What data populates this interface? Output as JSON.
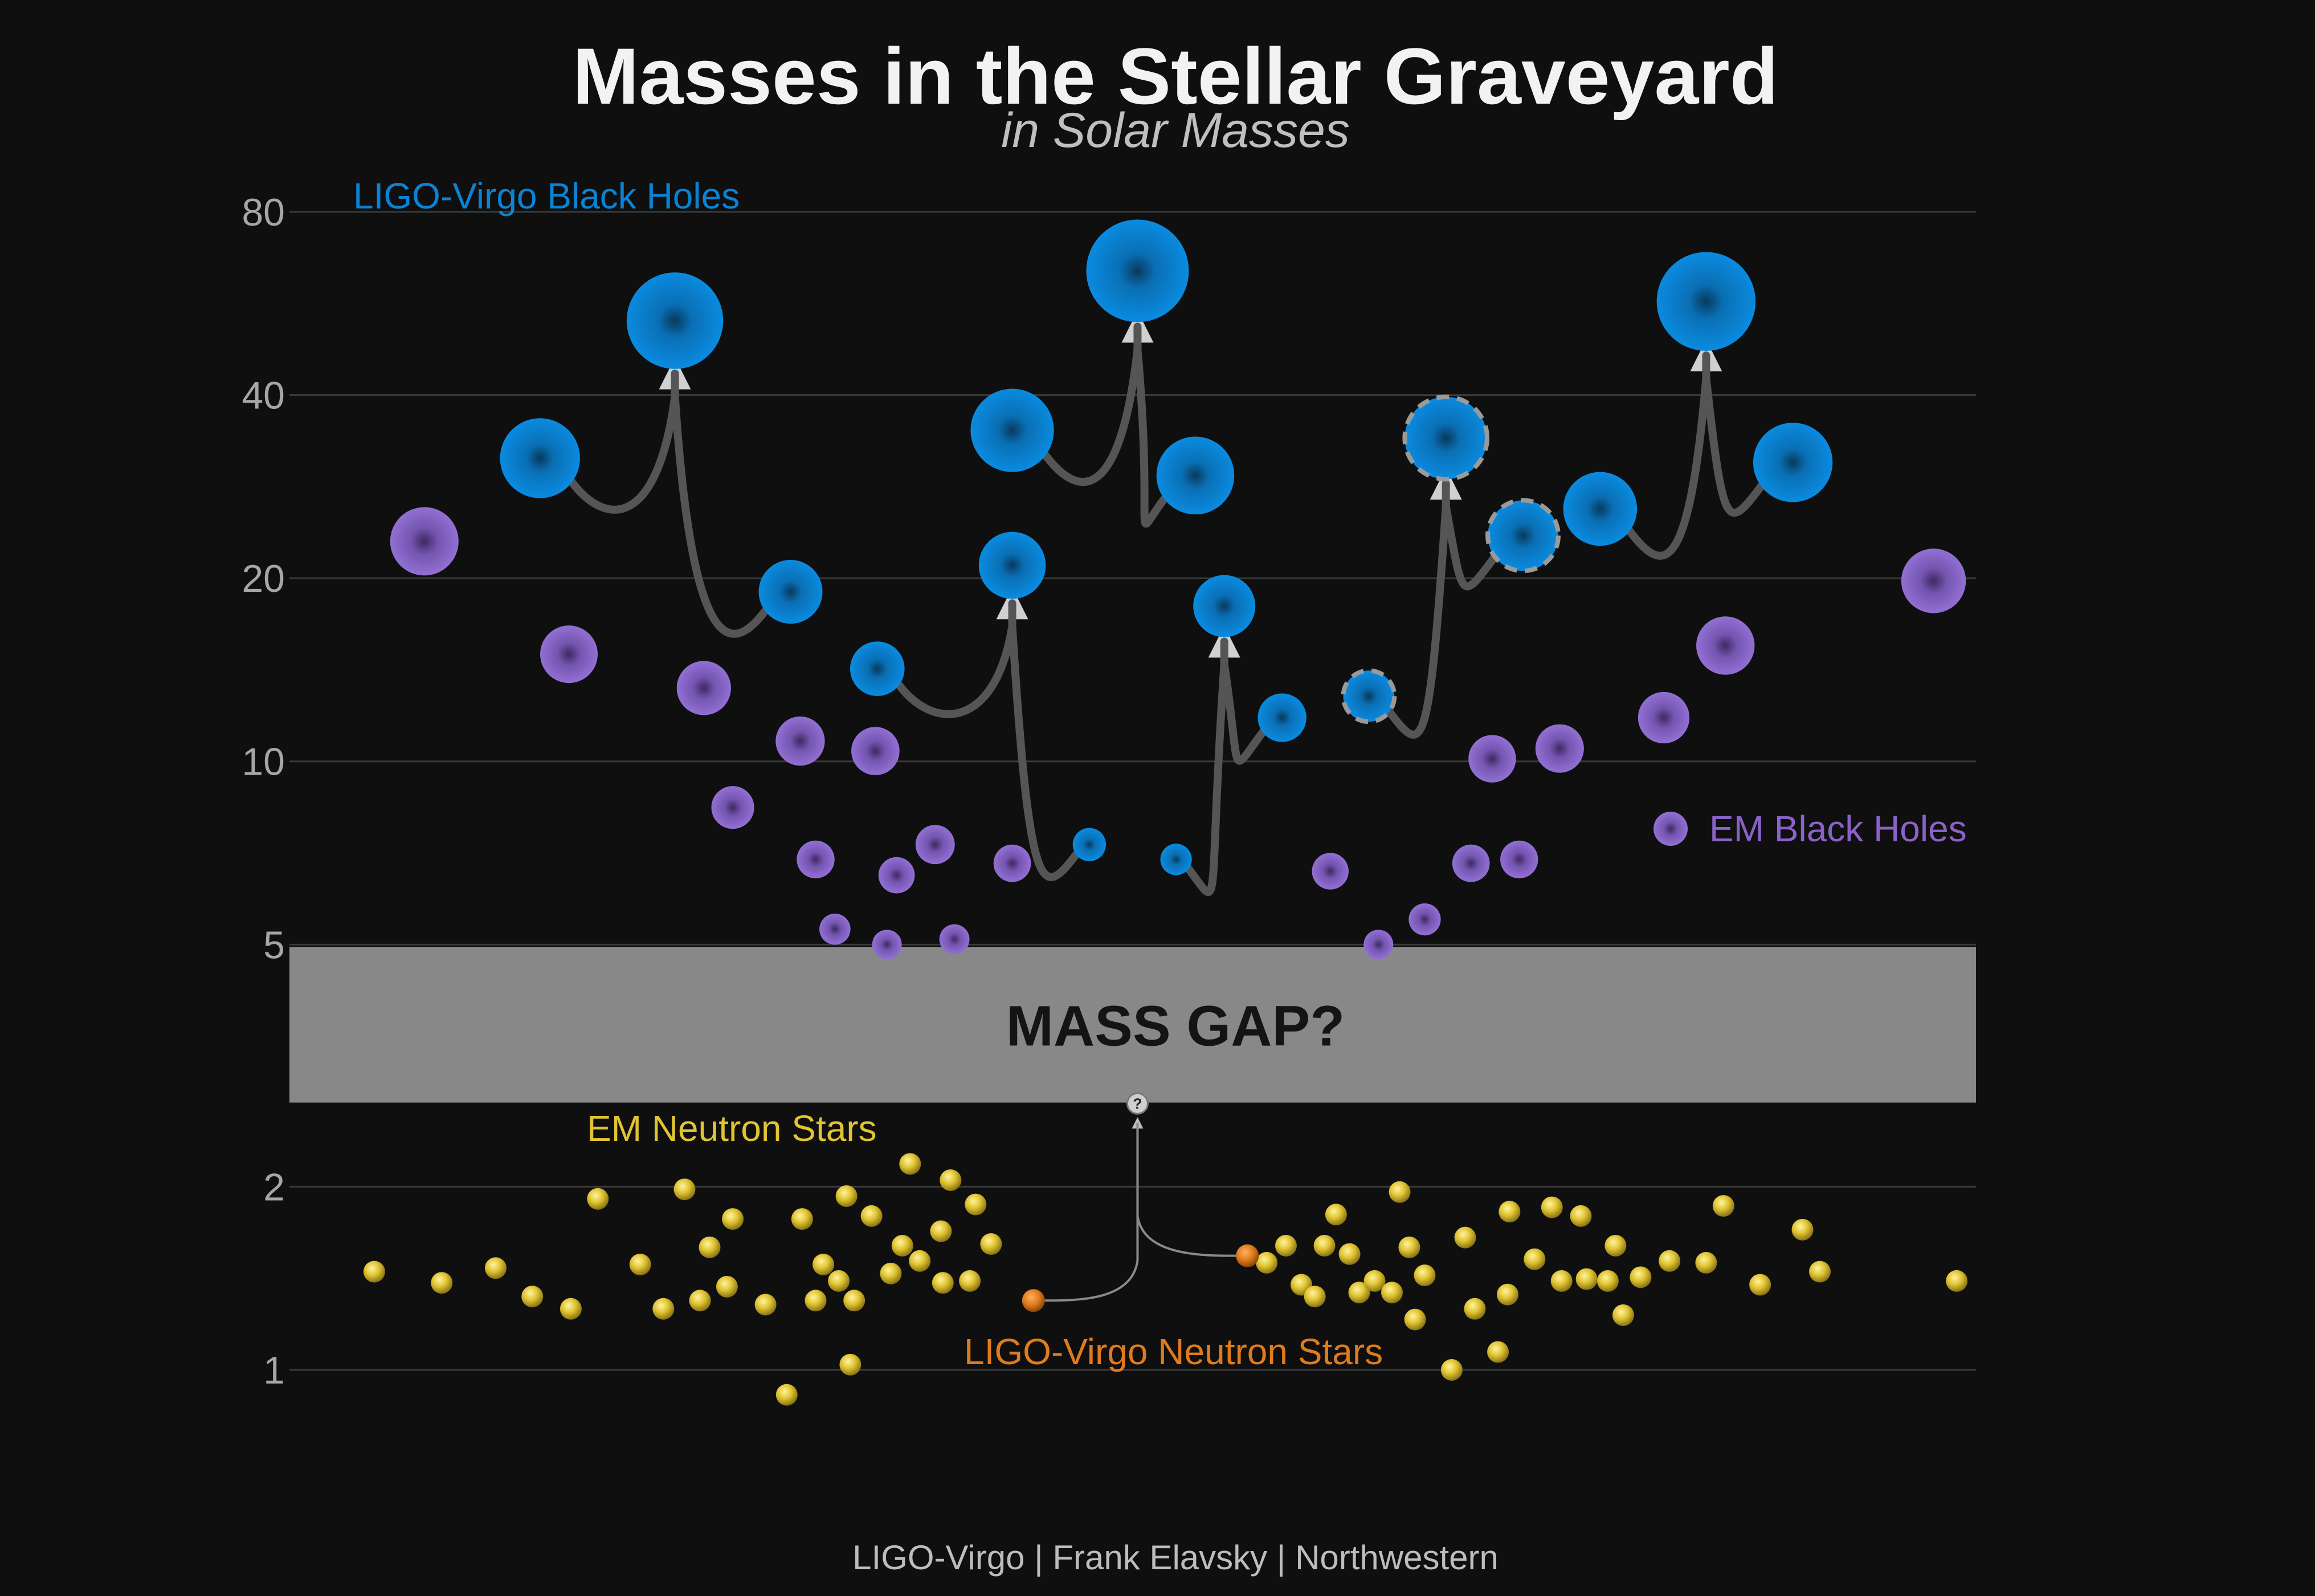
{
  "colors": {
    "background": "#0f0f0f",
    "ligo_bh": "#0a83d4",
    "em_bh": "#8a62c9",
    "em_ns": "#e0c432",
    "ligo_ns": "#df7b1e",
    "mass_gap": "#888888",
    "arrow": "#555555",
    "arrow_head": "#d0d0d0"
  },
  "chart_data": {
    "type": "scatter",
    "title": "Masses in the Stellar Graveyard",
    "subtitle": "in Solar Masses",
    "y_scale": "log",
    "ylim": [
      0.6,
      100
    ],
    "y_ticks": [
      1,
      2,
      5,
      10,
      20,
      40,
      80
    ],
    "y_tick_labels": [
      "1",
      "2",
      "5",
      "10",
      "20",
      "40",
      "80"
    ],
    "x_axis_visible": false,
    "grid": true,
    "mass_gap": {
      "label": "MASS GAP?",
      "range": [
        2.75,
        4.95
      ]
    },
    "series": [
      {
        "name": "LIGO-Virgo Black Holes",
        "color": "#0a83d4",
        "points": [
          {
            "x": 13,
            "y": 31.5
          },
          {
            "x": 20,
            "y": 53
          },
          {
            "x": 26,
            "y": 19
          },
          {
            "x": 30.5,
            "y": 14.2
          },
          {
            "x": 37.5,
            "y": 21
          },
          {
            "x": 37.5,
            "y": 35
          },
          {
            "x": 41.5,
            "y": 7.3
          },
          {
            "x": 44,
            "y": 64
          },
          {
            "x": 46,
            "y": 6.9
          },
          {
            "x": 47,
            "y": 29.5
          },
          {
            "x": 48.5,
            "y": 18
          },
          {
            "x": 51.5,
            "y": 11.8
          },
          {
            "x": 56,
            "y": 12.8,
            "dashed": true
          },
          {
            "x": 60,
            "y": 34,
            "dashed": true
          },
          {
            "x": 64,
            "y": 23.5,
            "dashed": true
          },
          {
            "x": 68,
            "y": 26
          },
          {
            "x": 73.5,
            "y": 57
          },
          {
            "x": 78,
            "y": 31
          }
        ],
        "mergers": [
          {
            "from": [
              0,
              2
            ],
            "to": 1
          },
          {
            "from": [
              3,
              6
            ],
            "to": 4
          },
          {
            "from": [
              5,
              9
            ],
            "to": 7
          },
          {
            "from": [
              8,
              11
            ],
            "to": 10
          },
          {
            "from": [
              12,
              14
            ],
            "to": 13
          },
          {
            "from": [
              15,
              17
            ],
            "to": 16
          }
        ]
      },
      {
        "name": "EM Black Holes",
        "color": "#8a62c9",
        "points": [
          {
            "x": 7,
            "y": 23
          },
          {
            "x": 14.5,
            "y": 15
          },
          {
            "x": 21.5,
            "y": 13.2
          },
          {
            "x": 23,
            "y": 8.4
          },
          {
            "x": 26.5,
            "y": 10.8
          },
          {
            "x": 27.3,
            "y": 6.9
          },
          {
            "x": 28.3,
            "y": 5.3
          },
          {
            "x": 30.4,
            "y": 10.4
          },
          {
            "x": 31,
            "y": 5
          },
          {
            "x": 31.5,
            "y": 6.5
          },
          {
            "x": 33.5,
            "y": 7.3
          },
          {
            "x": 34.5,
            "y": 5.1
          },
          {
            "x": 37.5,
            "y": 6.8
          },
          {
            "x": 54,
            "y": 6.6
          },
          {
            "x": 56.5,
            "y": 5.0
          },
          {
            "x": 58.9,
            "y": 5.5
          },
          {
            "x": 61.3,
            "y": 6.8
          },
          {
            "x": 62.4,
            "y": 10.1
          },
          {
            "x": 63.8,
            "y": 6.9
          },
          {
            "x": 65.9,
            "y": 10.5
          },
          {
            "x": 71.3,
            "y": 11.8
          },
          {
            "x": 74.5,
            "y": 15.5
          },
          {
            "x": 85.3,
            "y": 19.8
          }
        ]
      },
      {
        "name": "EM Neutron Stars",
        "color": "#e0c432",
        "points": [
          {
            "x": 4.4,
            "y": 1.45
          },
          {
            "x": 7.9,
            "y": 1.39
          },
          {
            "x": 10.7,
            "y": 1.47
          },
          {
            "x": 12.6,
            "y": 1.32
          },
          {
            "x": 14.6,
            "y": 1.26
          },
          {
            "x": 16,
            "y": 1.91
          },
          {
            "x": 18.2,
            "y": 1.49
          },
          {
            "x": 19.4,
            "y": 1.26
          },
          {
            "x": 20.5,
            "y": 1.98
          },
          {
            "x": 21.3,
            "y": 1.3
          },
          {
            "x": 21.8,
            "y": 1.59
          },
          {
            "x": 22.7,
            "y": 1.37
          },
          {
            "x": 23,
            "y": 1.77
          },
          {
            "x": 24.7,
            "y": 1.28
          },
          {
            "x": 25.8,
            "y": 0.91
          },
          {
            "x": 26.6,
            "y": 1.77
          },
          {
            "x": 27.3,
            "y": 1.3
          },
          {
            "x": 27.7,
            "y": 1.49
          },
          {
            "x": 28.5,
            "y": 1.4
          },
          {
            "x": 28.9,
            "y": 1.93
          },
          {
            "x": 29.1,
            "y": 1.02
          },
          {
            "x": 29.3,
            "y": 1.3
          },
          {
            "x": 30.2,
            "y": 1.79
          },
          {
            "x": 31.2,
            "y": 1.44
          },
          {
            "x": 31.8,
            "y": 1.6
          },
          {
            "x": 32.2,
            "y": 2.18
          },
          {
            "x": 32.7,
            "y": 1.51
          },
          {
            "x": 33.8,
            "y": 1.69
          },
          {
            "x": 33.9,
            "y": 1.39
          },
          {
            "x": 34.3,
            "y": 2.05
          },
          {
            "x": 35.3,
            "y": 1.4
          },
          {
            "x": 35.6,
            "y": 1.87
          },
          {
            "x": 36.4,
            "y": 1.61
          },
          {
            "x": 50.7,
            "y": 1.5
          },
          {
            "x": 51.7,
            "y": 1.6
          },
          {
            "x": 52.5,
            "y": 1.38
          },
          {
            "x": 53.2,
            "y": 1.32
          },
          {
            "x": 53.7,
            "y": 1.6
          },
          {
            "x": 54.3,
            "y": 1.8
          },
          {
            "x": 55,
            "y": 1.55
          },
          {
            "x": 55.5,
            "y": 1.34
          },
          {
            "x": 56.3,
            "y": 1.4
          },
          {
            "x": 57.2,
            "y": 1.34
          },
          {
            "x": 57.6,
            "y": 1.96
          },
          {
            "x": 58.1,
            "y": 1.59
          },
          {
            "x": 58.4,
            "y": 1.21
          },
          {
            "x": 58.9,
            "y": 1.43
          },
          {
            "x": 60.3,
            "y": 1.0
          },
          {
            "x": 61,
            "y": 1.65
          },
          {
            "x": 61.5,
            "y": 1.26
          },
          {
            "x": 62.7,
            "y": 1.07
          },
          {
            "x": 63.2,
            "y": 1.33
          },
          {
            "x": 63.3,
            "y": 1.82
          },
          {
            "x": 64.6,
            "y": 1.52
          },
          {
            "x": 65.5,
            "y": 1.85
          },
          {
            "x": 66,
            "y": 1.4
          },
          {
            "x": 67,
            "y": 1.79
          },
          {
            "x": 67.3,
            "y": 1.41
          },
          {
            "x": 68.4,
            "y": 1.4
          },
          {
            "x": 68.8,
            "y": 1.6
          },
          {
            "x": 69.2,
            "y": 1.23
          },
          {
            "x": 70.1,
            "y": 1.42
          },
          {
            "x": 71.6,
            "y": 1.51
          },
          {
            "x": 73.5,
            "y": 1.5
          },
          {
            "x": 74.4,
            "y": 1.86
          },
          {
            "x": 76.3,
            "y": 1.38
          },
          {
            "x": 78.5,
            "y": 1.7
          },
          {
            "x": 79.4,
            "y": 1.45
          },
          {
            "x": 86.5,
            "y": 1.4
          }
        ]
      },
      {
        "name": "LIGO-Virgo Neutron Stars",
        "color": "#df7b1e",
        "points": [
          {
            "x": 38.6,
            "y": 1.3
          },
          {
            "x": 44,
            "y": 2.74,
            "unknown": true
          },
          {
            "x": 49.7,
            "y": 1.54
          }
        ],
        "mergers": [
          {
            "from": [
              0,
              2
            ],
            "to": 1
          }
        ]
      }
    ],
    "labels": {
      "ligo_bh": "LIGO-Virgo Black Holes",
      "em_bh": "EM Black Holes",
      "em_ns": "EM Neutron Stars",
      "ligo_ns": "LIGO-Virgo Neutron Stars",
      "unknown_mark": "?"
    },
    "credit": "LIGO-Virgo | Frank Elavsky | Northwestern"
  }
}
